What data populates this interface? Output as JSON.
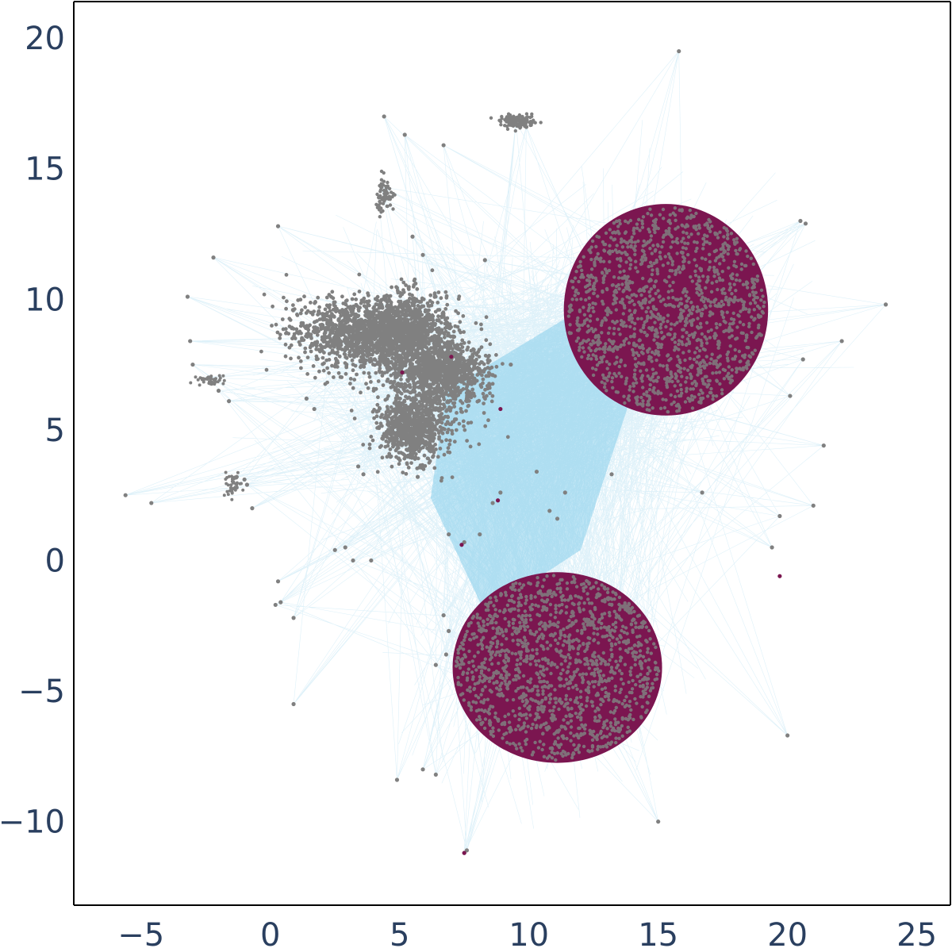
{
  "chart_data": {
    "type": "scatter",
    "title": "",
    "xlabel": "",
    "ylabel": "",
    "xlim": [
      -7.6,
      26.3
    ],
    "ylim": [
      -13.2,
      21.4
    ],
    "x_ticks": [
      -5,
      0,
      5,
      10,
      15,
      20,
      25
    ],
    "y_ticks": [
      -10,
      -5,
      0,
      5,
      10,
      15,
      20
    ],
    "x_tick_labels": [
      "−5",
      "0",
      "5",
      "10",
      "15",
      "20",
      "25"
    ],
    "y_tick_labels": [
      "−10",
      "−5",
      "0",
      "5",
      "10",
      "15",
      "20"
    ],
    "grid": false,
    "legend": "none",
    "colors": {
      "edge": "#87ceeb",
      "node_gray": "#808080",
      "node_maroon": "#7b1650",
      "axis": "#000000",
      "tick_text": "#2a3f5f"
    },
    "series": [
      {
        "description_type": "edges",
        "color": "#87ceeb",
        "structure": "network edges connecting node clusters"
      },
      {
        "color": "#808080",
        "points": [
          [
            15.8,
            19.5
          ],
          [
            4.4,
            17.0
          ],
          [
            5.2,
            16.3
          ],
          [
            6.7,
            15.9
          ],
          [
            9.5,
            16.8
          ],
          [
            9.9,
            16.6
          ],
          [
            4.3,
            14.3
          ],
          [
            4.2,
            13.9
          ],
          [
            0.3,
            12.8
          ],
          [
            -2.2,
            11.6
          ],
          [
            -3.2,
            10.1
          ],
          [
            20.5,
            13.0
          ],
          [
            20.7,
            12.9
          ],
          [
            23.8,
            9.8
          ],
          [
            22.1,
            8.4
          ],
          [
            20.1,
            6.3
          ],
          [
            21.4,
            4.4
          ],
          [
            20.6,
            7.7
          ],
          [
            -3.1,
            8.4
          ],
          [
            -3.0,
            7.5
          ],
          [
            -2.4,
            7.0
          ],
          [
            -2.0,
            6.5
          ],
          [
            -1.6,
            6.1
          ],
          [
            -5.6,
            2.5
          ],
          [
            -4.6,
            2.2
          ],
          [
            -1.3,
            3.2
          ],
          [
            -1.0,
            3.1
          ],
          [
            -0.9,
            2.9
          ],
          [
            -0.7,
            2.0
          ],
          [
            0.9,
            -5.5
          ],
          [
            4.9,
            -8.4
          ],
          [
            5.9,
            -8.0
          ],
          [
            6.4,
            -8.2
          ],
          [
            15.0,
            -10.0
          ],
          [
            20.0,
            -6.7
          ],
          [
            19.4,
            0.5
          ],
          [
            21.0,
            2.1
          ],
          [
            19.7,
            1.7
          ],
          [
            7.5,
            -11.2
          ],
          [
            7.6,
            -11.1
          ],
          [
            10.3,
            3.4
          ],
          [
            11.4,
            2.6
          ],
          [
            10.8,
            1.9
          ],
          [
            11.1,
            1.6
          ],
          [
            13.2,
            3.3
          ],
          [
            16.7,
            2.6
          ],
          [
            6.9,
            1.0
          ],
          [
            6.7,
            -2.1
          ],
          [
            6.9,
            -2.7
          ],
          [
            6.8,
            -3.6
          ],
          [
            6.4,
            -4.0
          ],
          [
            3.6,
            3.3
          ],
          [
            3.4,
            3.6
          ],
          [
            2.9,
            0.5
          ],
          [
            3.2,
            0.0
          ],
          [
            3.9,
            0.0
          ],
          [
            2.5,
            0.4
          ],
          [
            1.4,
            6.2
          ],
          [
            1.7,
            5.8
          ],
          [
            8.3,
            11.5
          ],
          [
            5.5,
            12.4
          ],
          [
            5.9,
            11.7
          ],
          [
            6.9,
            6.8
          ],
          [
            7.2,
            6.3
          ],
          [
            7.6,
            6.1
          ],
          [
            8.6,
            7.1
          ],
          [
            9.3,
            7.5
          ],
          [
            5.9,
            3.6
          ],
          [
            5.7,
            3.2
          ],
          [
            8.9,
            2.6
          ],
          [
            8.6,
            2.2
          ],
          [
            8.1,
            1.0
          ],
          [
            7.5,
            0.7
          ],
          [
            0.3,
            -0.8
          ],
          [
            0.4,
            -1.6
          ],
          [
            0.9,
            -2.2
          ],
          [
            0.2,
            -1.7
          ]
        ]
      },
      {
        "color": "#7b1650",
        "points": [
          [
            19.7,
            -0.6
          ],
          [
            8.9,
            5.8
          ],
          [
            7.0,
            7.8
          ],
          [
            5.1,
            7.2
          ],
          [
            8.8,
            2.3
          ],
          [
            7.4,
            0.6
          ],
          [
            7.5,
            -11.2
          ]
        ]
      }
    ],
    "clusters": [
      {
        "color": "#7b1650",
        "shape": "disk",
        "center": [
          15.3,
          9.6
        ],
        "radius_x": 3.95,
        "radius_y": 4.05
      },
      {
        "color": "#7b1650",
        "shape": "disk",
        "center": [
          11.1,
          -4.1
        ],
        "radius_x": 4.05,
        "radius_y": 3.65
      },
      {
        "color": "#808080",
        "shape": "blob",
        "center": [
          5.0,
          7.0
        ]
      },
      {
        "color": "#808080",
        "shape": "blob",
        "center": [
          9.6,
          16.6
        ]
      },
      {
        "color": "#808080",
        "shape": "blob",
        "center": [
          4.3,
          14.0
        ]
      }
    ]
  }
}
